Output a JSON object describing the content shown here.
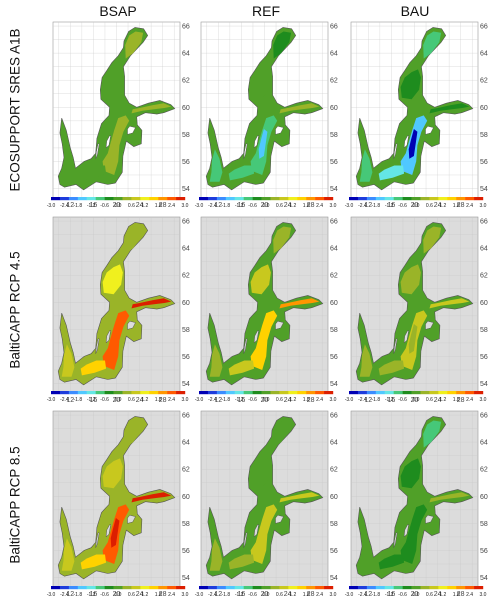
{
  "columns": [
    "BSAP",
    "REF",
    "BAU"
  ],
  "rows": [
    "ECOSUPPORT SRES  A1B",
    "BaltiCAPP RCP 4.5",
    "BaltiCAPP RCP 8.5"
  ],
  "colors": {
    "land_first_row": "#ffffff",
    "land_other_rows": "#dcdcdc",
    "grid": "#c8c8c8",
    "coast": "#555555"
  },
  "chart_data": {
    "type": "heatmap",
    "x_ticks": [
      "12",
      "16",
      "20",
      "24",
      "28"
    ],
    "y_ticks": [
      "54",
      "56",
      "58",
      "60",
      "62",
      "64",
      "66"
    ],
    "colorbar": {
      "ticks": [
        "-3.0",
        "-2.4",
        "-1.8",
        "-1.2",
        "-0.6",
        "0.0",
        "0.6",
        "1.2",
        "1.8",
        "2.4",
        "3.0"
      ],
      "range": [
        -3.0,
        3.0
      ],
      "colors": [
        "#0000b4",
        "#1e3cdc",
        "#3c8cff",
        "#50c8ff",
        "#64e6e6",
        "#46c878",
        "#1e8c1e",
        "#50a028",
        "#9ab428",
        "#c8c81e",
        "#f0f01e",
        "#ffd200",
        "#ff9600",
        "#ff5a00",
        "#dc1e00"
      ]
    },
    "panels": [
      {
        "row": "ECOSUPPORT SRES  A1B",
        "column": "BSAP",
        "regions": {
          "north_bay": 0.2,
          "bothnian_sea": 0.0,
          "gulf_of_finland": 0.4,
          "central_baltic": 0.3,
          "gotland_deep": 0.5,
          "southern_baltic": 0.1,
          "danish_straits": 0.0,
          "coastal": 0.0
        }
      },
      {
        "row": "ECOSUPPORT SRES  A1B",
        "column": "REF",
        "regions": {
          "north_bay": -0.3,
          "bothnian_sea": 0.0,
          "gulf_of_finland": 0.2,
          "central_baltic": -0.9,
          "gotland_deep": -1.5,
          "southern_baltic": -0.8,
          "danish_straits": -0.6,
          "coastal": 0.0
        }
      },
      {
        "row": "ECOSUPPORT SRES  A1B",
        "column": "BAU",
        "regions": {
          "north_bay": -0.6,
          "bothnian_sea": -0.4,
          "gulf_of_finland": -0.2,
          "central_baltic": -1.6,
          "gotland_deep": -3.0,
          "southern_baltic": -1.4,
          "danish_straits": -1.0,
          "coastal": 0.0
        }
      },
      {
        "row": "BaltiCAPP RCP 4.5",
        "column": "BSAP",
        "regions": {
          "north_bay": 0.5,
          "bothnian_sea": 1.2,
          "gulf_of_finland": 2.8,
          "central_baltic": 2.4,
          "gotland_deep": 2.6,
          "southern_baltic": 1.5,
          "danish_straits": 0.8,
          "coastal": 0.2
        }
      },
      {
        "row": "BaltiCAPP RCP 4.5",
        "column": "REF",
        "regions": {
          "north_bay": 0.3,
          "bothnian_sea": 0.6,
          "gulf_of_finland": 1.9,
          "central_baltic": 1.8,
          "gotland_deep": 1.6,
          "southern_baltic": 0.9,
          "danish_straits": 0.4,
          "coastal": 0.1
        }
      },
      {
        "row": "BaltiCAPP RCP 4.5",
        "column": "BAU",
        "regions": {
          "north_bay": 0.2,
          "bothnian_sea": 0.3,
          "gulf_of_finland": 0.9,
          "central_baltic": 0.6,
          "gotland_deep": 0.3,
          "southern_baltic": 0.4,
          "danish_straits": 0.2,
          "coastal": 0.0
        }
      },
      {
        "row": "BaltiCAPP RCP 8.5",
        "column": "BSAP",
        "regions": {
          "north_bay": 0.4,
          "bothnian_sea": 0.8,
          "gulf_of_finland": 2.9,
          "central_baltic": 2.6,
          "gotland_deep": 2.8,
          "southern_baltic": 1.8,
          "danish_straits": 0.9,
          "coastal": 0.2
        }
      },
      {
        "row": "BaltiCAPP RCP 8.5",
        "column": "REF",
        "regions": {
          "north_bay": 0.0,
          "bothnian_sea": 0.1,
          "gulf_of_finland": 0.9,
          "central_baltic": 0.8,
          "gotland_deep": 0.7,
          "southern_baltic": 0.5,
          "danish_straits": 0.2,
          "coastal": 0.0
        }
      },
      {
        "row": "BaltiCAPP RCP 8.5",
        "column": "BAU",
        "regions": {
          "north_bay": -0.6,
          "bothnian_sea": -0.2,
          "gulf_of_finland": 0.2,
          "central_baltic": -0.2,
          "gotland_deep": -0.5,
          "southern_baltic": -0.3,
          "danish_straits": -0.1,
          "coastal": 0.0
        }
      }
    ]
  }
}
